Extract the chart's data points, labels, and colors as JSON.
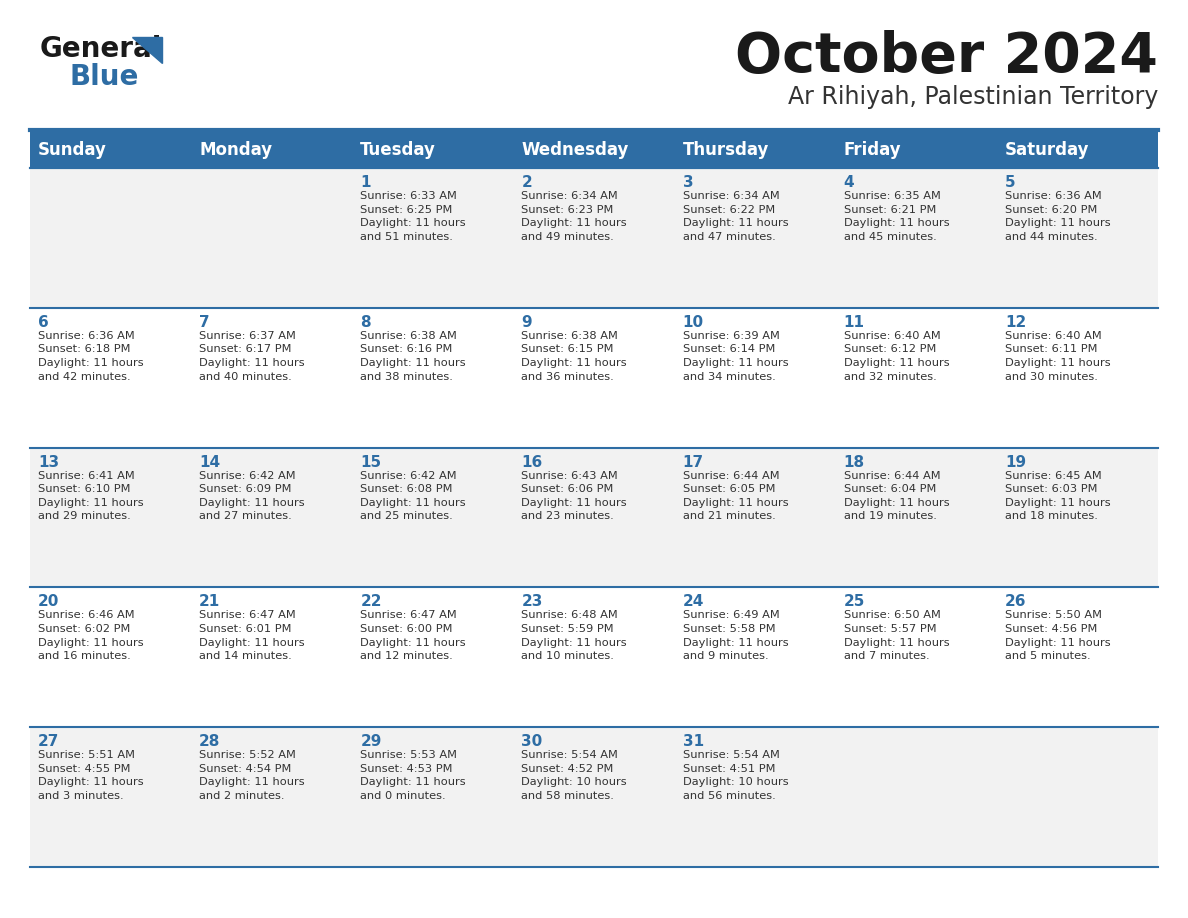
{
  "title": "October 2024",
  "subtitle": "Ar Rihiyah, Palestinian Territory",
  "header_bg": "#2E6DA4",
  "header_text_color": "#FFFFFF",
  "cell_bg_odd": "#F2F2F2",
  "cell_bg_even": "#FFFFFF",
  "day_number_color": "#2E6DA4",
  "cell_text_color": "#333333",
  "border_color": "#2E6DA4",
  "days_of_week": [
    "Sunday",
    "Monday",
    "Tuesday",
    "Wednesday",
    "Thursday",
    "Friday",
    "Saturday"
  ],
  "weeks": [
    [
      {
        "day": "",
        "info": ""
      },
      {
        "day": "",
        "info": ""
      },
      {
        "day": "1",
        "info": "Sunrise: 6:33 AM\nSunset: 6:25 PM\nDaylight: 11 hours\nand 51 minutes."
      },
      {
        "day": "2",
        "info": "Sunrise: 6:34 AM\nSunset: 6:23 PM\nDaylight: 11 hours\nand 49 minutes."
      },
      {
        "day": "3",
        "info": "Sunrise: 6:34 AM\nSunset: 6:22 PM\nDaylight: 11 hours\nand 47 minutes."
      },
      {
        "day": "4",
        "info": "Sunrise: 6:35 AM\nSunset: 6:21 PM\nDaylight: 11 hours\nand 45 minutes."
      },
      {
        "day": "5",
        "info": "Sunrise: 6:36 AM\nSunset: 6:20 PM\nDaylight: 11 hours\nand 44 minutes."
      }
    ],
    [
      {
        "day": "6",
        "info": "Sunrise: 6:36 AM\nSunset: 6:18 PM\nDaylight: 11 hours\nand 42 minutes."
      },
      {
        "day": "7",
        "info": "Sunrise: 6:37 AM\nSunset: 6:17 PM\nDaylight: 11 hours\nand 40 minutes."
      },
      {
        "day": "8",
        "info": "Sunrise: 6:38 AM\nSunset: 6:16 PM\nDaylight: 11 hours\nand 38 minutes."
      },
      {
        "day": "9",
        "info": "Sunrise: 6:38 AM\nSunset: 6:15 PM\nDaylight: 11 hours\nand 36 minutes."
      },
      {
        "day": "10",
        "info": "Sunrise: 6:39 AM\nSunset: 6:14 PM\nDaylight: 11 hours\nand 34 minutes."
      },
      {
        "day": "11",
        "info": "Sunrise: 6:40 AM\nSunset: 6:12 PM\nDaylight: 11 hours\nand 32 minutes."
      },
      {
        "day": "12",
        "info": "Sunrise: 6:40 AM\nSunset: 6:11 PM\nDaylight: 11 hours\nand 30 minutes."
      }
    ],
    [
      {
        "day": "13",
        "info": "Sunrise: 6:41 AM\nSunset: 6:10 PM\nDaylight: 11 hours\nand 29 minutes."
      },
      {
        "day": "14",
        "info": "Sunrise: 6:42 AM\nSunset: 6:09 PM\nDaylight: 11 hours\nand 27 minutes."
      },
      {
        "day": "15",
        "info": "Sunrise: 6:42 AM\nSunset: 6:08 PM\nDaylight: 11 hours\nand 25 minutes."
      },
      {
        "day": "16",
        "info": "Sunrise: 6:43 AM\nSunset: 6:06 PM\nDaylight: 11 hours\nand 23 minutes."
      },
      {
        "day": "17",
        "info": "Sunrise: 6:44 AM\nSunset: 6:05 PM\nDaylight: 11 hours\nand 21 minutes."
      },
      {
        "day": "18",
        "info": "Sunrise: 6:44 AM\nSunset: 6:04 PM\nDaylight: 11 hours\nand 19 minutes."
      },
      {
        "day": "19",
        "info": "Sunrise: 6:45 AM\nSunset: 6:03 PM\nDaylight: 11 hours\nand 18 minutes."
      }
    ],
    [
      {
        "day": "20",
        "info": "Sunrise: 6:46 AM\nSunset: 6:02 PM\nDaylight: 11 hours\nand 16 minutes."
      },
      {
        "day": "21",
        "info": "Sunrise: 6:47 AM\nSunset: 6:01 PM\nDaylight: 11 hours\nand 14 minutes."
      },
      {
        "day": "22",
        "info": "Sunrise: 6:47 AM\nSunset: 6:00 PM\nDaylight: 11 hours\nand 12 minutes."
      },
      {
        "day": "23",
        "info": "Sunrise: 6:48 AM\nSunset: 5:59 PM\nDaylight: 11 hours\nand 10 minutes."
      },
      {
        "day": "24",
        "info": "Sunrise: 6:49 AM\nSunset: 5:58 PM\nDaylight: 11 hours\nand 9 minutes."
      },
      {
        "day": "25",
        "info": "Sunrise: 6:50 AM\nSunset: 5:57 PM\nDaylight: 11 hours\nand 7 minutes."
      },
      {
        "day": "26",
        "info": "Sunrise: 5:50 AM\nSunset: 4:56 PM\nDaylight: 11 hours\nand 5 minutes."
      }
    ],
    [
      {
        "day": "27",
        "info": "Sunrise: 5:51 AM\nSunset: 4:55 PM\nDaylight: 11 hours\nand 3 minutes."
      },
      {
        "day": "28",
        "info": "Sunrise: 5:52 AM\nSunset: 4:54 PM\nDaylight: 11 hours\nand 2 minutes."
      },
      {
        "day": "29",
        "info": "Sunrise: 5:53 AM\nSunset: 4:53 PM\nDaylight: 11 hours\nand 0 minutes."
      },
      {
        "day": "30",
        "info": "Sunrise: 5:54 AM\nSunset: 4:52 PM\nDaylight: 10 hours\nand 58 minutes."
      },
      {
        "day": "31",
        "info": "Sunrise: 5:54 AM\nSunset: 4:51 PM\nDaylight: 10 hours\nand 56 minutes."
      },
      {
        "day": "",
        "info": ""
      },
      {
        "day": "",
        "info": ""
      }
    ]
  ]
}
